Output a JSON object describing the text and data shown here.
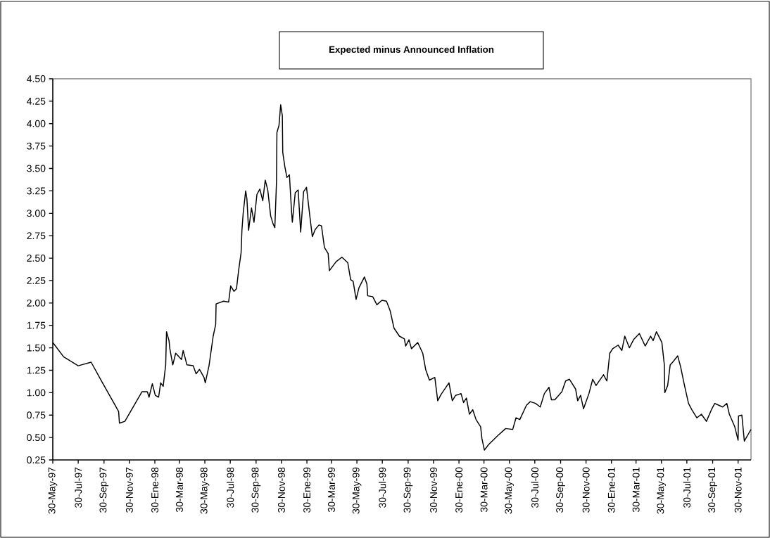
{
  "chart_data": {
    "type": "line",
    "title": "Expected minus Announced Inflation",
    "xlim": [
      "1997-05-30",
      "2001-12-31"
    ],
    "ylim": [
      0.25,
      4.5
    ],
    "xticks": [
      {
        "value": "1997-05-30",
        "label": "30-May-97"
      },
      {
        "value": "1997-07-30",
        "label": "30-Jul-97"
      },
      {
        "value": "1997-09-30",
        "label": "30-Sep-97"
      },
      {
        "value": "1997-11-30",
        "label": "30-Nov-97"
      },
      {
        "value": "1998-01-30",
        "label": "30-Ene-98"
      },
      {
        "value": "1998-03-30",
        "label": "30-Mar-98"
      },
      {
        "value": "1998-05-30",
        "label": "30-May-98"
      },
      {
        "value": "1998-07-30",
        "label": "30-Jul-98"
      },
      {
        "value": "1998-09-30",
        "label": "30-Sep-98"
      },
      {
        "value": "1998-11-30",
        "label": "30-Nov-98"
      },
      {
        "value": "1999-01-30",
        "label": "30-Ene-99"
      },
      {
        "value": "1999-03-30",
        "label": "30-Mar-99"
      },
      {
        "value": "1999-05-30",
        "label": "30-May-99"
      },
      {
        "value": "1999-07-30",
        "label": "30-Jul-99"
      },
      {
        "value": "1999-09-30",
        "label": "30-Sep-99"
      },
      {
        "value": "1999-11-30",
        "label": "30-Nov-99"
      },
      {
        "value": "2000-01-30",
        "label": "30-Ene-00"
      },
      {
        "value": "2000-03-30",
        "label": "30-Mar-00"
      },
      {
        "value": "2000-05-30",
        "label": "30-May-00"
      },
      {
        "value": "2000-07-30",
        "label": "30-Jul-00"
      },
      {
        "value": "2000-09-30",
        "label": "30-Sep-00"
      },
      {
        "value": "2000-11-30",
        "label": "30-Nov-00"
      },
      {
        "value": "2001-01-30",
        "label": "30-Ene-01"
      },
      {
        "value": "2001-03-30",
        "label": "30-Mar-01"
      },
      {
        "value": "2001-05-30",
        "label": "30-May-01"
      },
      {
        "value": "2001-07-30",
        "label": "30-Jul-01"
      },
      {
        "value": "2001-09-30",
        "label": "30-Sep-01"
      },
      {
        "value": "2001-11-30",
        "label": "30-Nov-01"
      }
    ],
    "yticks": [
      {
        "value": 0.25,
        "label": "0.25"
      },
      {
        "value": 0.5,
        "label": "0.50"
      },
      {
        "value": 0.75,
        "label": "0.75"
      },
      {
        "value": 1.0,
        "label": "1.00"
      },
      {
        "value": 1.25,
        "label": "1.25"
      },
      {
        "value": 1.5,
        "label": "1.50"
      },
      {
        "value": 1.75,
        "label": "1.75"
      },
      {
        "value": 2.0,
        "label": "2.00"
      },
      {
        "value": 2.25,
        "label": "2.25"
      },
      {
        "value": 2.5,
        "label": "2.50"
      },
      {
        "value": 2.75,
        "label": "2.75"
      },
      {
        "value": 3.0,
        "label": "3.00"
      },
      {
        "value": 3.25,
        "label": "3.25"
      },
      {
        "value": 3.5,
        "label": "3.50"
      },
      {
        "value": 3.75,
        "label": "3.75"
      },
      {
        "value": 4.0,
        "label": "4.00"
      },
      {
        "value": 4.25,
        "label": "4.25"
      },
      {
        "value": 4.5,
        "label": "4.50"
      }
    ],
    "series": [
      {
        "color": "#000000",
        "x": [
          "1997-05-30",
          "1997-06-25",
          "1997-07-30",
          "1997-08-30",
          "1997-09-24",
          "1997-10-23",
          "1997-11-04",
          "1997-11-06",
          "1997-11-19",
          "1997-12-30",
          "1998-01-12",
          "1998-01-16",
          "1998-01-24",
          "1998-01-31",
          "1998-02-08",
          "1998-02-13",
          "1998-02-19",
          "1998-02-25",
          "1998-02-27",
          "1998-03-05",
          "1998-03-07",
          "1998-03-14",
          "1998-03-21",
          "1998-04-04",
          "1998-04-08",
          "1998-04-17",
          "1998-05-02",
          "1998-05-09",
          "1998-05-17",
          "1998-05-28",
          "1998-05-31",
          "1998-06-09",
          "1998-06-19",
          "1998-06-25",
          "1998-06-26",
          "1998-07-14",
          "1998-07-26",
          "1998-07-31",
          "1998-08-08",
          "1998-08-14",
          "1998-08-19",
          "1998-08-25",
          "1998-08-27",
          "1998-08-30",
          "1998-09-05",
          "1998-09-08",
          "1998-09-12",
          "1998-09-19",
          "1998-09-25",
          "1998-10-02",
          "1998-10-09",
          "1998-10-16",
          "1998-10-22",
          "1998-10-28",
          "1998-11-04",
          "1998-11-10",
          "1998-11-14",
          "1998-11-18",
          "1998-11-19",
          "1998-11-24",
          "1998-11-28",
          "1998-12-02",
          "1998-12-03",
          "1998-12-08",
          "1998-12-13",
          "1998-12-19",
          "1998-12-24",
          "1998-12-26",
          "1999-01-02",
          "1999-01-09",
          "1999-01-15",
          "1999-01-22",
          "1999-01-29",
          "1999-02-06",
          "1999-02-12",
          "1999-02-19",
          "1999-02-28",
          "1999-03-06",
          "1999-03-13",
          "1999-03-22",
          "1999-03-25",
          "1999-04-10",
          "1999-04-24",
          "1999-05-08",
          "1999-05-15",
          "1999-05-21",
          "1999-05-28",
          "1999-06-04",
          "1999-06-17",
          "1999-06-23",
          "1999-06-25",
          "1999-07-07",
          "1999-07-17",
          "1999-07-29",
          "1999-08-09",
          "1999-08-18",
          "1999-08-27",
          "1999-09-09",
          "1999-09-21",
          "1999-09-24",
          "1999-10-02",
          "1999-10-08",
          "1999-10-23",
          "1999-11-04",
          "1999-11-11",
          "1999-11-20",
          "1999-12-03",
          "1999-12-10",
          "1999-12-18",
          "2000-01-06",
          "2000-01-14",
          "2000-01-22",
          "2000-02-04",
          "2000-02-10",
          "2000-02-17",
          "2000-02-24",
          "2000-03-03",
          "2000-03-11",
          "2000-03-22",
          "2000-03-25",
          "2000-03-31",
          "2000-04-10",
          "2000-05-02",
          "2000-05-21",
          "2000-06-07",
          "2000-06-15",
          "2000-06-24",
          "2000-07-10",
          "2000-07-19",
          "2000-08-01",
          "2000-08-12",
          "2000-08-22",
          "2000-09-02",
          "2000-09-08",
          "2000-09-16",
          "2000-10-03",
          "2000-10-12",
          "2000-10-21",
          "2000-11-05",
          "2000-11-10",
          "2000-11-17",
          "2000-11-24",
          "2000-12-07",
          "2000-12-16",
          "2000-12-24",
          "2001-01-11",
          "2001-01-19",
          "2001-01-26",
          "2001-02-02",
          "2001-02-15",
          "2001-02-24",
          "2001-03-03",
          "2001-03-14",
          "2001-03-24",
          "2001-04-07",
          "2001-04-21",
          "2001-05-04",
          "2001-05-10",
          "2001-05-18",
          "2001-05-31",
          "2001-06-06",
          "2001-06-07",
          "2001-06-14",
          "2001-06-20",
          "2001-06-26",
          "2001-07-08",
          "2001-07-15",
          "2001-07-23",
          "2001-08-03",
          "2001-08-11",
          "2001-08-23",
          "2001-09-03",
          "2001-09-15",
          "2001-09-28",
          "2001-10-05",
          "2001-10-24",
          "2001-11-03",
          "2001-11-09",
          "2001-11-22",
          "2001-11-30",
          "2001-12-01",
          "2001-12-09",
          "2001-12-15",
          "2001-12-26",
          "2001-12-31"
        ],
        "values": [
          1.56,
          1.4,
          1.3,
          1.34,
          1.13,
          0.89,
          0.79,
          0.66,
          0.68,
          1.01,
          1.01,
          0.95,
          1.1,
          0.97,
          0.95,
          1.11,
          1.07,
          1.31,
          1.68,
          1.58,
          1.49,
          1.31,
          1.44,
          1.37,
          1.47,
          1.31,
          1.3,
          1.21,
          1.26,
          1.17,
          1.11,
          1.3,
          1.63,
          1.76,
          1.99,
          2.02,
          2.01,
          2.19,
          2.13,
          2.16,
          2.36,
          2.56,
          2.81,
          3.0,
          3.25,
          3.16,
          2.81,
          3.06,
          2.9,
          3.21,
          3.27,
          3.14,
          3.37,
          3.26,
          2.97,
          2.88,
          2.84,
          3.35,
          3.9,
          3.98,
          4.21,
          4.09,
          3.68,
          3.52,
          3.4,
          3.43,
          3.03,
          2.9,
          3.23,
          3.26,
          2.79,
          3.24,
          3.29,
          2.97,
          2.74,
          2.82,
          2.87,
          2.86,
          2.62,
          2.55,
          2.36,
          2.46,
          2.51,
          2.45,
          2.26,
          2.24,
          2.04,
          2.17,
          2.29,
          2.21,
          2.08,
          2.07,
          1.98,
          2.03,
          2.02,
          1.91,
          1.72,
          1.63,
          1.6,
          1.52,
          1.59,
          1.49,
          1.56,
          1.44,
          1.26,
          1.14,
          1.17,
          0.91,
          0.98,
          1.11,
          0.91,
          0.97,
          0.99,
          0.89,
          0.94,
          0.76,
          0.81,
          0.7,
          0.62,
          0.49,
          0.36,
          0.42,
          0.52,
          0.6,
          0.59,
          0.72,
          0.7,
          0.86,
          0.9,
          0.88,
          0.84,
          0.99,
          1.06,
          0.92,
          0.92,
          1.01,
          1.13,
          1.15,
          1.04,
          0.91,
          0.97,
          0.82,
          0.99,
          1.15,
          1.08,
          1.2,
          1.13,
          1.44,
          1.49,
          1.53,
          1.47,
          1.63,
          1.5,
          1.59,
          1.66,
          1.52,
          1.63,
          1.58,
          1.68,
          1.56,
          1.31,
          1.0,
          1.08,
          1.31,
          1.34,
          1.41,
          1.29,
          1.11,
          0.88,
          0.81,
          0.72,
          0.76,
          0.68,
          0.82,
          0.88,
          0.84,
          0.88,
          0.76,
          0.62,
          0.47,
          0.74,
          0.75,
          0.46,
          0.55,
          0.59
        ]
      }
    ]
  }
}
